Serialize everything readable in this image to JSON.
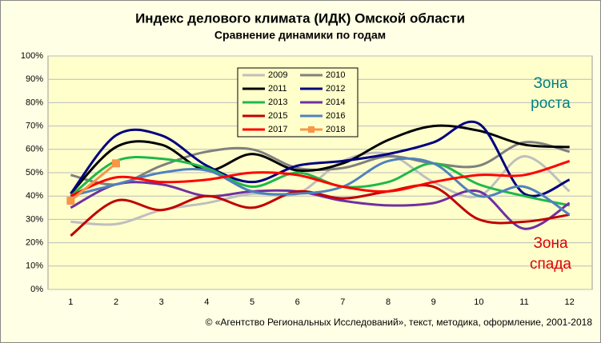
{
  "chart_data": {
    "type": "line",
    "title": "Индекс делового климата (ИДК) Омской области",
    "subtitle": "Сравнение динамики  по годам",
    "categories": [
      "1",
      "2",
      "3",
      "4",
      "5",
      "6",
      "7",
      "8",
      "9",
      "10",
      "11",
      "12"
    ],
    "ylim": [
      0,
      100
    ],
    "yticks": [
      {
        "value": 0,
        "label": "0%"
      },
      {
        "value": 10,
        "label": "10%"
      },
      {
        "value": 20,
        "label": "20%"
      },
      {
        "value": 30,
        "label": "30%"
      },
      {
        "value": 40,
        "label": "40%"
      },
      {
        "value": 50,
        "label": "50%"
      },
      {
        "value": 60,
        "label": "60%"
      },
      {
        "value": 70,
        "label": "70%"
      },
      {
        "value": 80,
        "label": "80%"
      },
      {
        "value": 90,
        "label": "90%"
      },
      {
        "value": 100,
        "label": "100%"
      }
    ],
    "grid": true,
    "series": [
      {
        "name": "2009",
        "color": "#bfbfbf",
        "values": [
          29,
          28,
          34,
          37,
          41,
          41,
          55,
          58,
          46,
          40,
          57,
          42
        ]
      },
      {
        "name": "2010",
        "color": "#808080",
        "values": [
          49,
          45,
          53,
          59,
          60,
          52,
          52,
          57,
          54,
          53,
          63,
          59
        ]
      },
      {
        "name": "2011",
        "color": "#000000",
        "values": [
          41,
          61,
          62,
          51,
          58,
          51,
          54,
          64,
          70,
          68,
          62,
          61
        ]
      },
      {
        "name": "2012",
        "color": "#000080",
        "values": [
          41,
          66,
          66,
          53,
          46,
          53,
          55,
          58,
          63,
          71,
          41,
          47
        ]
      },
      {
        "name": "2013",
        "color": "#1fb84a",
        "values": [
          40,
          55,
          56,
          52,
          44,
          50,
          44,
          46,
          54,
          45,
          40,
          36
        ]
      },
      {
        "name": "2014",
        "color": "#7030a0",
        "values": [
          35,
          45,
          45,
          40,
          42,
          42,
          38,
          36,
          37,
          42,
          26,
          37
        ]
      },
      {
        "name": "2015",
        "color": "#c00000",
        "values": [
          23,
          38,
          34,
          40,
          35,
          42,
          39,
          42,
          44,
          30,
          29,
          32
        ]
      },
      {
        "name": "2016",
        "color": "#4f81bd",
        "values": [
          40,
          45,
          50,
          51,
          42,
          41,
          44,
          55,
          54,
          40,
          44,
          32
        ]
      },
      {
        "name": "2017",
        "color": "#ff0000",
        "values": [
          40,
          48,
          46,
          47,
          50,
          49,
          44,
          42,
          46,
          49,
          49,
          55
        ]
      },
      {
        "name": "2018",
        "color": "#f79646",
        "values": [
          38,
          54,
          null,
          null,
          null,
          null,
          null,
          null,
          null,
          null,
          null,
          null
        ]
      }
    ],
    "annotations": [
      {
        "text": "Зона роста",
        "color": "#008080"
      },
      {
        "text": "Зона спада",
        "color": "#e00000"
      }
    ],
    "footer": "© «Агентство Региональных  Исследований»,  текст, методика, оформление,  2001-2018"
  }
}
